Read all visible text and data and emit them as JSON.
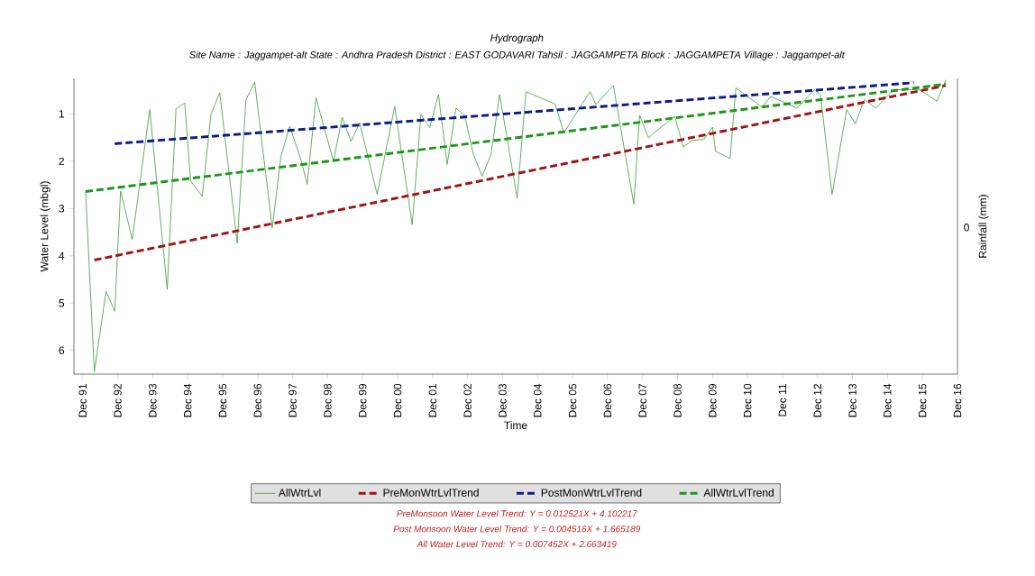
{
  "chart_data": {
    "type": "line",
    "title": "Hydrograph",
    "subtitle": "Site Name : Jaggampet-alt  State : Andhra Pradesh District : EAST GODAVARI  Tahsil : JAGGAMPETA  Block : JAGGAMPETA Village : Jaggampet-alt",
    "xlabel": "Time",
    "ylabel": "Water Level (mbgl)",
    "y2label": "Rainfall (mm)",
    "xlim": [
      "1991-09",
      "2016-12"
    ],
    "ylim": [
      6.5,
      0.25
    ],
    "yticks": [
      1,
      2,
      3,
      4,
      5,
      6
    ],
    "xticks": [
      {
        "value": "1991-12",
        "label": "Dec 91"
      },
      {
        "value": "1992-12",
        "label": "Dec 92"
      },
      {
        "value": "1993-12",
        "label": "Dec 93"
      },
      {
        "value": "1994-12",
        "label": "Dec 94"
      },
      {
        "value": "1995-12",
        "label": "Dec 95"
      },
      {
        "value": "1996-12",
        "label": "Dec 96"
      },
      {
        "value": "1997-12",
        "label": "Dec 97"
      },
      {
        "value": "1998-12",
        "label": "Dec 98"
      },
      {
        "value": "1999-12",
        "label": "Dec 99"
      },
      {
        "value": "2000-12",
        "label": "Dec 00"
      },
      {
        "value": "2001-12",
        "label": "Dec 01"
      },
      {
        "value": "2002-12",
        "label": "Dec 02"
      },
      {
        "value": "2003-12",
        "label": "Dec 03"
      },
      {
        "value": "2004-12",
        "label": "Dec 04"
      },
      {
        "value": "2005-12",
        "label": "Dec 05"
      },
      {
        "value": "2006-12",
        "label": "Dec 06"
      },
      {
        "value": "2007-12",
        "label": "Dec 07"
      },
      {
        "value": "2008-12",
        "label": "Dec 08"
      },
      {
        "value": "2009-12",
        "label": "Dec 09"
      },
      {
        "value": "2010-12",
        "label": "Dec 10"
      },
      {
        "value": "2011-12",
        "label": "Dec 11"
      },
      {
        "value": "2012-12",
        "label": "Dec 12"
      },
      {
        "value": "2013-12",
        "label": "Dec 13"
      },
      {
        "value": "2014-12",
        "label": "Dec 14"
      },
      {
        "value": "2015-12",
        "label": "Dec 15"
      },
      {
        "value": "2016-12",
        "label": "Dec 16"
      }
    ],
    "grid": false,
    "legend": "bottom",
    "series": [
      {
        "name": "AllWtrLvl",
        "color": "#3a9a3a",
        "line_style": "solid",
        "x": [
          "1992-01",
          "1992-04",
          "1992-08",
          "1992-11",
          "1993-01",
          "1993-05",
          "1993-11",
          "1994-05",
          "1994-08",
          "1994-11",
          "1995-01",
          "1995-05",
          "1995-08",
          "1995-11",
          "1996-05",
          "1996-08",
          "1996-11",
          "1997-05",
          "1997-08",
          "1997-11",
          "1998-03",
          "1998-05",
          "1998-08",
          "1999-02",
          "1999-05",
          "1999-08",
          "1999-11",
          "2000-05",
          "2000-11",
          "2001-05",
          "2001-08",
          "2001-11",
          "2002-02",
          "2002-05",
          "2002-08",
          "2002-11",
          "2003-02",
          "2003-05",
          "2003-08",
          "2003-11",
          "2004-05",
          "2004-08",
          "2005-06",
          "2005-09",
          "2006-06",
          "2006-08",
          "2007-02",
          "2007-09",
          "2007-11",
          "2008-02",
          "2008-11",
          "2009-02",
          "2009-05",
          "2009-09",
          "2009-12",
          "2010-01",
          "2010-06",
          "2010-08",
          "2011-05",
          "2011-08",
          "2012-05",
          "2012-11",
          "2013-01",
          "2013-05",
          "2013-10",
          "2014-01",
          "2014-04",
          "2014-08",
          "2015-02",
          "2015-11",
          "2016-05",
          "2016-08"
        ],
        "values": [
          2.64,
          6.45,
          4.75,
          5.17,
          2.63,
          3.65,
          0.91,
          4.71,
          0.89,
          0.77,
          2.42,
          2.74,
          1.01,
          0.55,
          3.73,
          0.7,
          0.33,
          3.41,
          1.9,
          1.26,
          2.0,
          2.49,
          0.66,
          2.0,
          1.07,
          1.58,
          1.19,
          2.7,
          0.84,
          3.34,
          1.01,
          1.29,
          0.59,
          2.07,
          0.88,
          1.03,
          1.86,
          2.32,
          1.86,
          0.59,
          2.78,
          0.53,
          0.79,
          1.4,
          0.53,
          0.8,
          0.4,
          2.91,
          1.03,
          1.5,
          1.05,
          1.7,
          1.56,
          1.54,
          1.28,
          1.79,
          1.94,
          0.45,
          0.86,
          0.63,
          0.88,
          0.49,
          0.59,
          2.7,
          0.91,
          1.21,
          0.7,
          0.88,
          0.49,
          0.49,
          0.73,
          0.28
        ]
      },
      {
        "name": "PreMonWtrLvlTrend",
        "color": "#a01414",
        "line_style": "dashed",
        "x": [
          "1992-04",
          "2016-08"
        ],
        "values": [
          4.09,
          0.4
        ]
      },
      {
        "name": "PostMonWtrLvlTrend",
        "color": "#0c1a8c",
        "line_style": "dashed",
        "x": [
          "1992-11",
          "2015-09"
        ],
        "values": [
          1.63,
          0.34
        ]
      },
      {
        "name": "AllWtrLvlTrend",
        "color": "#1e961e",
        "line_style": "dashed",
        "x": [
          "1992-01",
          "2016-08"
        ],
        "values": [
          2.64,
          0.37
        ]
      }
    ],
    "annotations": [
      "0",
      "PreMonsoon Water Level Trend: Y = 0.012521X + 4.102217",
      "Post Monsoon Water Level Trend: Y = 0.004516X + 1.665189",
      "All Water Level Trend: Y = 0.007452X + 2.663419"
    ]
  }
}
